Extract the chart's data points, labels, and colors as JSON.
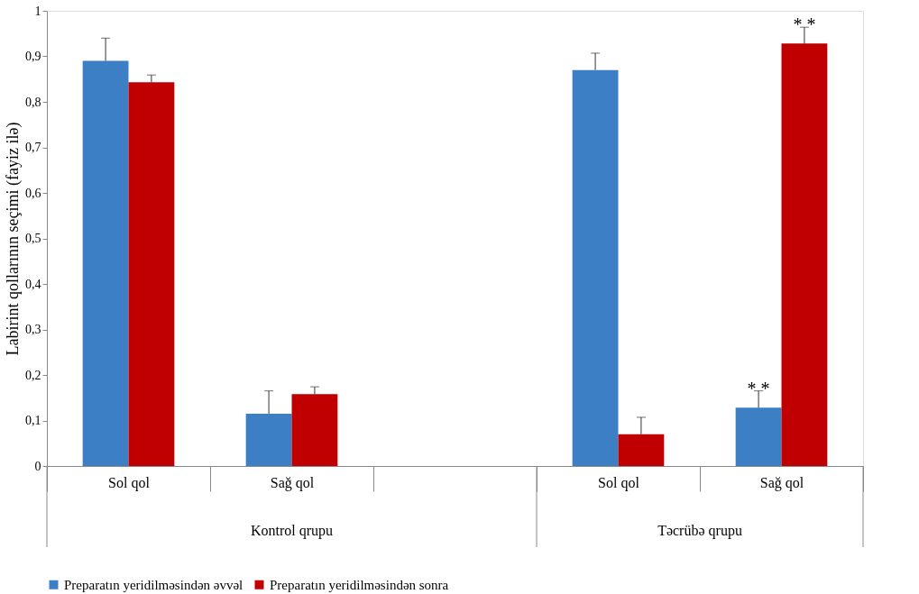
{
  "chart_data": {
    "type": "bar",
    "categories": [
      "Sol qol",
      "Sağ qol",
      null,
      "Sol qol",
      "Sağ qol"
    ],
    "ylabel": "Labirint qollarının seçimi (fayiz ilə)",
    "series": [
      {
        "name": "Preparatın yeridilməsindən əvvəl",
        "color": "#3d7fc4",
        "values": [
          0.89,
          0.115,
          null,
          0.87,
          0.128
        ],
        "errors": [
          [
            0.89,
            0.94
          ],
          [
            0.115,
            0.165
          ],
          null,
          [
            0.87,
            0.907
          ],
          [
            0.128,
            0.165
          ]
        ]
      },
      {
        "name": "Preparatın yeridilməsindən sonra",
        "color": "#c00000",
        "values": [
          0.843,
          0.158,
          null,
          0.07,
          0.928
        ],
        "errors": [
          [
            0.843,
            0.859
          ],
          [
            0.158,
            0.174
          ],
          null,
          [
            0.07,
            0.107
          ],
          [
            0.928,
            0.964
          ]
        ]
      }
    ],
    "ylim": [
      0,
      1
    ],
    "yticks": [
      0,
      {
        "value": 0.1,
        "label": "0,1"
      },
      {
        "value": 0.2,
        "label": "0,2"
      },
      {
        "value": 0.3,
        "label": "0,3"
      },
      {
        "value": 0.4,
        "label": "0,4"
      },
      {
        "value": 0.5,
        "label": "0,5"
      },
      {
        "value": 0.6,
        "label": "0,6"
      },
      {
        "value": 0.7,
        "label": "0,7"
      },
      {
        "value": 0.8,
        "label": "0,8"
      },
      {
        "value": 0.9,
        "label": "0,9"
      },
      1
    ],
    "annotations": [
      "Kontrol qrupu",
      "Təcrübə qrupu",
      "* *",
      "* *"
    ],
    "grid": false,
    "legend": "bottom"
  }
}
